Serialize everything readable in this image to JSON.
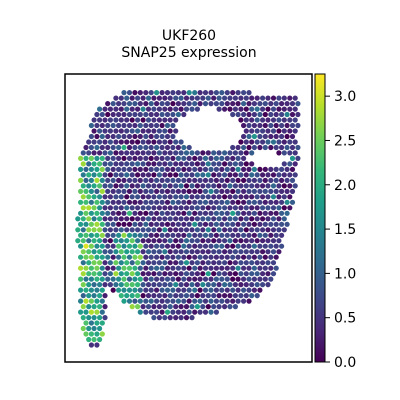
{
  "chart_data": {
    "type": "scatter",
    "subtype": "spatial-hexbin",
    "title": "UKF260",
    "subtitle": "SNAP25 expression",
    "xlabel": "",
    "ylabel": "",
    "grid": false,
    "axis_ticks": false,
    "colormap": "viridis",
    "colorbar": {
      "range": [
        0,
        3.25
      ],
      "ticks": [
        0.0,
        0.5,
        1.0,
        1.5,
        2.0,
        2.5,
        3.0
      ],
      "tick_labels": [
        "0.0",
        "0.5",
        "1.0",
        "1.5",
        "2.0",
        "2.5",
        "3.0"
      ]
    },
    "regions": [
      {
        "name": "left strip",
        "x": [
          0.05,
          0.16
        ],
        "y": [
          0.07,
          0.72
        ],
        "mean_value": 2.0,
        "spread": 0.7
      },
      {
        "name": "middle strip",
        "x": [
          0.2,
          0.31
        ],
        "y": [
          0.07,
          0.45
        ],
        "mean_value": 1.8,
        "spread": 0.6
      },
      {
        "name": "main tissue",
        "x": [
          0.1,
          0.95
        ],
        "y": [
          0.3,
          0.95
        ],
        "mean_value": 0.5,
        "spread": 0.4
      }
    ],
    "holes": [
      {
        "x": [
          0.45,
          0.72
        ],
        "y": [
          0.73,
          0.88
        ]
      },
      {
        "x": [
          0.74,
          0.9
        ],
        "y": [
          0.68,
          0.73
        ]
      }
    ]
  },
  "colors": {
    "background": "#ffffff",
    "frame": "#000000",
    "viridis_stops": [
      "#440154",
      "#482878",
      "#3e4a89",
      "#31688e",
      "#26828e",
      "#1f9e89",
      "#35b779",
      "#6ece58",
      "#b5de2b",
      "#fde725"
    ]
  }
}
